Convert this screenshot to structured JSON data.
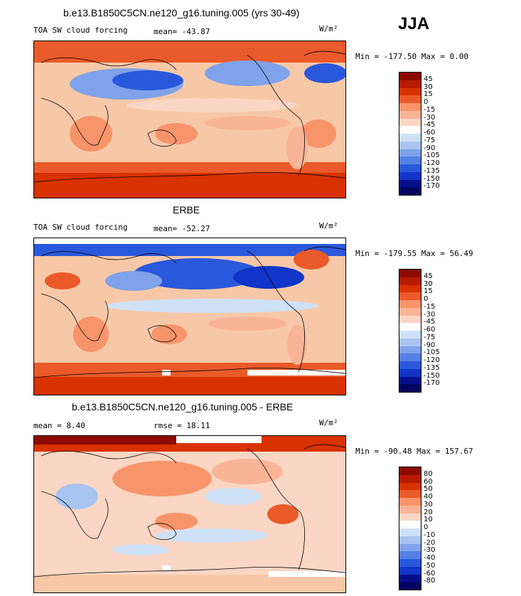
{
  "season": "JJA",
  "panels": [
    {
      "title": "b.e13.B1850C5CN.ne120_g16.tuning.005 (yrs 30-49)",
      "left_label": "TOA SW cloud forcing",
      "stat_label": "mean= -43.87",
      "units": "W/m²",
      "minmax": "Min = -177.50  Max =    0.00",
      "colorbar": {
        "levels": [
          "45",
          "30",
          "15",
          "0",
          "-15",
          "-30",
          "-45",
          "-60",
          "-75",
          "-90",
          "-105",
          "-120",
          "-135",
          "-150",
          "-170"
        ],
        "colors": [
          "#8c0a00",
          "#b81a00",
          "#d83200",
          "#ea5a2a",
          "#f7946a",
          "#f9b497",
          "#fbd6c4",
          "#fefefe",
          "#cfe1f6",
          "#a9c4f0",
          "#7fa2ea",
          "#5580e4",
          "#2a58dc",
          "#1035c8",
          "#060e8c",
          "#020460"
        ]
      }
    },
    {
      "title": "ERBE",
      "left_label": "TOA SW cloud forcing",
      "stat_label": "mean= -52.27",
      "units": "W/m²",
      "minmax": "Min = -179.55  Max =   56.49",
      "colorbar": {
        "levels": [
          "45",
          "30",
          "15",
          "0",
          "-15",
          "-30",
          "-45",
          "-60",
          "-75",
          "-90",
          "-105",
          "-120",
          "-135",
          "-150",
          "-170"
        ],
        "colors": [
          "#8c0a00",
          "#b81a00",
          "#d83200",
          "#ea5a2a",
          "#f7946a",
          "#f9b497",
          "#fbd6c4",
          "#fefefe",
          "#cfe1f6",
          "#a9c4f0",
          "#7fa2ea",
          "#5580e4",
          "#2a58dc",
          "#1035c8",
          "#060e8c",
          "#020460"
        ]
      }
    },
    {
      "title": "b.e13.B1850C5CN.ne120_g16.tuning.005 - ERBE",
      "left_label": "mean =    8.40",
      "stat_label": "rmse =   18.11",
      "units": "W/m²",
      "minmax": "Min = -90.48  Max = 157.67",
      "colorbar": {
        "levels": [
          "80",
          "60",
          "50",
          "40",
          "30",
          "20",
          "10",
          "0",
          "-10",
          "-20",
          "-30",
          "-40",
          "-50",
          "-60",
          "-80"
        ],
        "colors": [
          "#8c0a00",
          "#b81a00",
          "#d83200",
          "#ea5a2a",
          "#f7946a",
          "#f9b497",
          "#fbd6c4",
          "#fefefe",
          "#cfe1f6",
          "#a9c4f0",
          "#7fa2ea",
          "#5580e4",
          "#2a58dc",
          "#1035c8",
          "#060e8c",
          "#020460"
        ]
      }
    }
  ]
}
